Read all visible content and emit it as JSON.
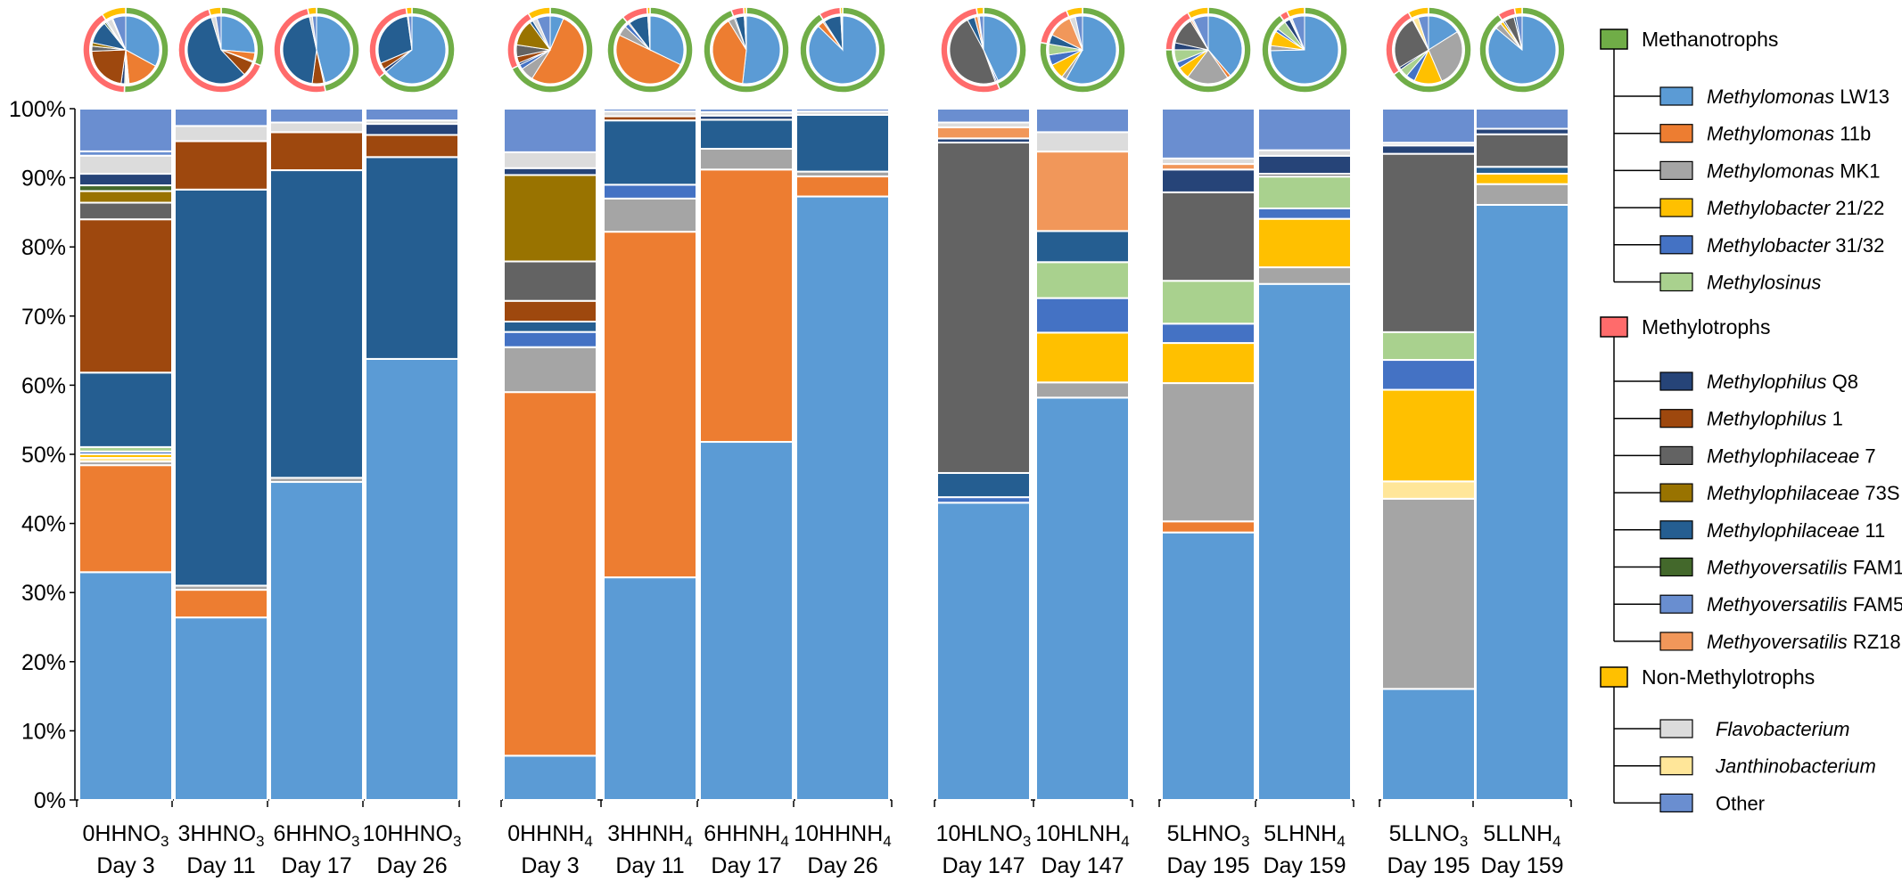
{
  "chart_data": {
    "type": "bar",
    "stacked": true,
    "title": "",
    "xlabel": "",
    "ylabel": "",
    "ylim": [
      0,
      100
    ],
    "y_ticks": [
      "0%",
      "10%",
      "20%",
      "30%",
      "40%",
      "50%",
      "60%",
      "70%",
      "80%",
      "90%",
      "100%"
    ],
    "taxa": [
      {
        "key": "lw13",
        "italic": "Methylomonas",
        "rest": " LW13",
        "color": "#5B9BD5"
      },
      {
        "key": "m11b",
        "italic": "Methylomonas",
        "rest": " 11b",
        "color": "#ED7D31"
      },
      {
        "key": "mk1",
        "italic": "Methylomonas",
        "rest": " MK1",
        "color": "#A5A5A5"
      },
      {
        "key": "mb2122",
        "italic": "Methylobacter",
        "rest": " 21/22",
        "color": "#FFC000"
      },
      {
        "key": "mb3132",
        "italic": "Methylobacter",
        "rest": " 31/32",
        "color": "#4472C4"
      },
      {
        "key": "msin",
        "italic": "Methylosinus",
        "rest": "",
        "color": "#A9D18E"
      },
      {
        "key": "q8",
        "italic": "Methylophilus",
        "rest": " Q8",
        "color": "#264478"
      },
      {
        "key": "mp1",
        "italic": "Methylophilus",
        "rest": " 1",
        "color": "#9E480E"
      },
      {
        "key": "mpl7",
        "italic": "Methylophilaceae",
        "rest": " 7",
        "color": "#636363"
      },
      {
        "key": "mpl73s",
        "italic": "Methylophilaceae",
        "rest": " 73S",
        "color": "#997300"
      },
      {
        "key": "mpl11",
        "italic": "Methylophilaceae",
        "rest": " 11",
        "color": "#255E91"
      },
      {
        "key": "fam1",
        "italic": "Methyoversatilis",
        "rest": " FAM1",
        "color": "#43682B"
      },
      {
        "key": "fam5",
        "italic": "Methyoversatilis",
        "rest": " FAM5",
        "color": "#698ED0"
      },
      {
        "key": "rz18",
        "italic": "Methyoversatilis",
        "rest": " RZ18",
        "color": "#F1975A"
      },
      {
        "key": "flavo",
        "italic": "Flavobacterium",
        "rest": "",
        "color": "#DCDCDC"
      },
      {
        "key": "janth",
        "italic": "Janthinobacterium",
        "rest": "",
        "color": "#FFE699"
      },
      {
        "key": "other",
        "italic": "",
        "rest": "Other",
        "color": "#6A8ED0"
      }
    ],
    "groups": [
      {
        "key": "methanotrophs",
        "label": "Methanotrophs",
        "color": "#70AD47",
        "members": [
          "lw13",
          "m11b",
          "mk1",
          "mb2122",
          "mb3132",
          "msin"
        ]
      },
      {
        "key": "methylotrophs",
        "label": "Methylotrophs",
        "color": "#FF6B6B",
        "members": [
          "q8",
          "mp1",
          "mpl7",
          "mpl73s",
          "mpl11",
          "fam1",
          "fam5",
          "rz18"
        ]
      },
      {
        "key": "nonmethylotrophs",
        "label": "Non-Methylotrophs",
        "color": "#FFC000",
        "members": [
          "flavo",
          "janth",
          "other"
        ]
      }
    ],
    "samples": [
      {
        "name": "0HHNO3",
        "prefix": "0HHNO",
        "sub": "3",
        "day": "Day 3",
        "values": {
          "lw13": 31.5,
          "m11b": 14.8,
          "mk1": 0.5,
          "mb2122": 0.5,
          "janth": 0.5,
          "mb3132": 0.4,
          "q8": 1.6,
          "mpl11": 10.3,
          "mp1": 21.2,
          "mpl7": 2.3,
          "mpl73s": 1.6,
          "fam1": 0.8,
          "msin": 0.6,
          "flavo": 2.5,
          "fam5": 0.6,
          "other": 5.9
        }
      },
      {
        "name": "3HHNO3",
        "prefix": "3HHNO",
        "sub": "3",
        "day": "Day 11",
        "values": {
          "lw13": 26.4,
          "m11b": 4.0,
          "mk1": 0.6,
          "mpl11": 57.3,
          "mp1": 7.0,
          "flavo": 2.2,
          "other": 2.5
        }
      },
      {
        "name": "6HHNO3",
        "prefix": "6HHNO",
        "sub": "3",
        "day": "Day 17",
        "values": {
          "lw13": 46.0,
          "mk1": 0.6,
          "mpl11": 44.5,
          "mp1": 5.5,
          "flavo": 1.4,
          "other": 2.0
        }
      },
      {
        "name": "10HHNO3",
        "prefix": "10HHNO",
        "sub": "3",
        "day": "Day 26",
        "values": {
          "lw13": 63.8,
          "mpl11": 29.2,
          "mp1": 3.2,
          "q8": 1.6,
          "flavo": 0.5,
          "other": 1.7
        }
      },
      {
        "name": "0HHNH4",
        "prefix": "0HHNH",
        "sub": "4",
        "day": "Day 3",
        "values": {
          "lw13": 6.4,
          "m11b": 52.6,
          "mk1": 6.5,
          "mb3132": 2.2,
          "mpl11": 1.5,
          "mp1": 3.0,
          "mpl7": 5.7,
          "mpl73s": 12.5,
          "q8": 1.0,
          "flavo": 2.3,
          "other": 6.3
        }
      },
      {
        "name": "3HHNH4",
        "prefix": "3HHNH",
        "sub": "4",
        "day": "Day 11",
        "values": {
          "lw13": 32.2,
          "m11b": 50.0,
          "mk1": 4.8,
          "mb3132": 2.0,
          "mpl11": 9.3,
          "mp1": 0.6,
          "flavo": 0.7,
          "other": 0.4
        }
      },
      {
        "name": "6HHNH4",
        "prefix": "6HHNH",
        "sub": "4",
        "day": "Day 17",
        "values": {
          "lw13": 51.8,
          "m11b": 39.4,
          "mk1": 3.0,
          "mpl11": 4.2,
          "q8": 0.6,
          "flavo": 0.5,
          "other": 0.5
        }
      },
      {
        "name": "10HHNH4",
        "prefix": "10HHNH",
        "sub": "4",
        "day": "Day 26",
        "values": {
          "lw13": 87.3,
          "m11b": 2.9,
          "mk1": 0.7,
          "mpl11": 8.2,
          "flavo": 0.5,
          "other": 0.4
        }
      },
      {
        "name": "10HLNO3",
        "prefix": "10HLNO",
        "sub": "3",
        "day": "Day 147",
        "values": {
          "lw13": 43.0,
          "mb3132": 0.8,
          "mpl11": 3.5,
          "mpl7": 47.8,
          "q8": 0.6,
          "flavo": 0.7,
          "rz18": 1.6,
          "other": 2.0
        }
      },
      {
        "name": "10HLNH4",
        "prefix": "10HLNH",
        "sub": "4",
        "day": "Day 147",
        "values": {
          "lw13": 58.2,
          "mk1": 2.2,
          "mb2122": 7.2,
          "mb3132": 5.0,
          "mpl11": 4.5,
          "msin": 5.2,
          "rz18": 11.5,
          "flavo": 2.8,
          "other": 3.4
        }
      },
      {
        "name": "5LHNO3",
        "prefix": "5LHNO",
        "sub": "3",
        "day": "Day 195",
        "values": {
          "lw13": 38.7,
          "m11b": 1.6,
          "mk1": 20.0,
          "mb2122": 5.8,
          "mb3132": 2.8,
          "msin": 6.2,
          "mpl7": 12.8,
          "q8": 3.3,
          "rz18": 0.8,
          "flavo": 0.8,
          "other": 7.2
        }
      },
      {
        "name": "5LHNH4",
        "prefix": "5LHNH",
        "sub": "4",
        "day": "Day 159",
        "values": {
          "lw13": 74.5,
          "mk1": 2.4,
          "mb2122": 7.0,
          "mb3132": 1.5,
          "msin": 4.6,
          "mpl7": 0.4,
          "q8": 2.6,
          "flavo": 0.8,
          "other": 6.0
        }
      },
      {
        "name": "5LLNO3",
        "prefix": "5LLNO",
        "sub": "3",
        "day": "Day 195",
        "values": {
          "lw13": 16.0,
          "mk1": 27.4,
          "mb2122": 13.2,
          "mb3132": 4.3,
          "msin": 4.0,
          "mpl7": 25.7,
          "q8": 1.2,
          "mb2122b": 0.0,
          "flavo": 0.4,
          "other": 4.9,
          "janth": 2.5
        }
      },
      {
        "name": "5LLNH4",
        "prefix": "5LLNH",
        "sub": "4",
        "day": "Day 159",
        "values": {
          "lw13": 86.0,
          "mk1": 3.0,
          "mb2122": 1.5,
          "mpl7": 4.7,
          "mpl11": 1.0,
          "q8": 0.8,
          "other": 2.9
        }
      }
    ],
    "stack_order": [
      "lw13",
      "m11b",
      "mk1",
      "janth",
      "mb2122",
      "mb3132",
      "msin",
      "mpl11",
      "mp1",
      "mpl7",
      "mpl73s",
      "fam1",
      "q8",
      "rz18",
      "flavo",
      "fam5",
      "other"
    ],
    "legend_position": "right"
  }
}
